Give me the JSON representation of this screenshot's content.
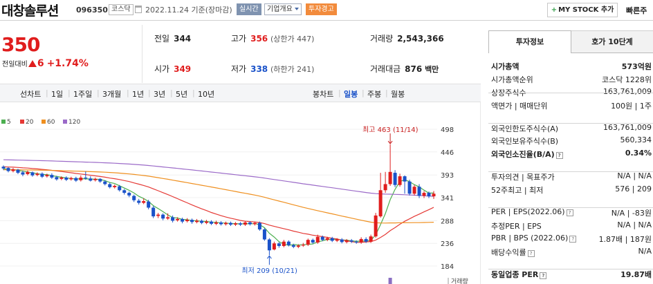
{
  "header": {
    "title": "대창솔루션",
    "code": "096350",
    "market": "코스닥",
    "date": "2022.11.24 기준(장마감)",
    "realtime_label": "실시간",
    "overview_label": "기업개요",
    "warning_label": "투자경고",
    "mystock_label": "MY STOCK 추가",
    "quick_label": "빠른주"
  },
  "price": {
    "current": "350",
    "change_label": "전일대비",
    "change": "6",
    "change_pct": "+1.74%"
  },
  "summary": {
    "prev_label": "전일",
    "prev": "344",
    "high_label": "고가",
    "high": "356",
    "upper_limit": "(상한가 447)",
    "volume_label": "거래량",
    "volume": "2,543,366",
    "open_label": "시가",
    "open": "349",
    "low_label": "저가",
    "low": "338",
    "lower_limit": "(하한가 241)",
    "amount_label": "거래대금",
    "amount": "876",
    "amount_unit": "백만"
  },
  "period_bar": {
    "line_chart_label": "선차트",
    "periods": [
      "1일",
      "1주일",
      "3개월",
      "1년",
      "3년",
      "5년",
      "10년"
    ],
    "candle_chart_label": "봉차트",
    "candles": [
      "일봉",
      "주봉",
      "월봉"
    ],
    "active_candle": "일봉"
  },
  "chart_data": {
    "type": "candlestick",
    "y_ticks": [
      "498",
      "446",
      "393",
      "341",
      "288",
      "236",
      "184"
    ],
    "ylim": [
      184,
      498
    ],
    "legend": [
      {
        "label": "5",
        "color": "#4caf50"
      },
      {
        "label": "20",
        "color": "#e53935"
      },
      {
        "label": "60",
        "color": "#ef8f1e"
      },
      {
        "label": "120",
        "color": "#9b6ac8"
      }
    ],
    "max_annotation": "최고 463 (11/14)",
    "min_annotation": "최저 209 (10/21)",
    "volume_label": "거래량",
    "candles": [
      [
        412,
        408,
        415,
        404
      ],
      [
        409,
        402,
        411,
        399
      ],
      [
        402,
        406,
        409,
        399
      ],
      [
        405,
        398,
        407,
        395
      ],
      [
        399,
        394,
        403,
        390
      ],
      [
        395,
        400,
        403,
        392
      ],
      [
        399,
        392,
        401,
        389
      ],
      [
        393,
        396,
        399,
        390
      ],
      [
        396,
        389,
        399,
        386
      ],
      [
        390,
        393,
        396,
        387
      ],
      [
        393,
        387,
        397,
        384
      ],
      [
        388,
        383,
        391,
        380
      ],
      [
        384,
        387,
        390,
        381
      ],
      [
        387,
        382,
        390,
        379
      ],
      [
        383,
        386,
        389,
        380
      ],
      [
        386,
        380,
        389,
        377
      ],
      [
        381,
        387,
        392,
        378
      ],
      [
        387,
        385,
        401,
        382
      ],
      [
        385,
        380,
        390,
        378
      ],
      [
        381,
        384,
        387,
        378
      ],
      [
        384,
        378,
        386,
        375
      ],
      [
        378,
        372,
        381,
        369
      ],
      [
        372,
        365,
        375,
        362
      ],
      [
        365,
        368,
        371,
        362
      ],
      [
        367,
        358,
        370,
        355
      ],
      [
        358,
        352,
        361,
        348
      ],
      [
        352,
        346,
        355,
        342
      ],
      [
        345,
        335,
        348,
        331
      ],
      [
        334,
        329,
        338,
        325
      ],
      [
        329,
        333,
        339,
        326
      ],
      [
        332,
        318,
        336,
        314
      ],
      [
        318,
        298,
        322,
        294
      ],
      [
        299,
        302,
        306,
        294
      ],
      [
        302,
        293,
        305,
        289
      ],
      [
        293,
        296,
        305,
        290
      ],
      [
        296,
        288,
        300,
        284
      ],
      [
        289,
        292,
        296,
        286
      ],
      [
        292,
        286,
        295,
        282
      ],
      [
        287,
        290,
        294,
        284
      ],
      [
        290,
        285,
        293,
        281
      ],
      [
        285,
        288,
        292,
        282
      ],
      [
        288,
        283,
        291,
        280
      ],
      [
        283,
        286,
        290,
        280
      ],
      [
        286,
        281,
        289,
        278
      ],
      [
        281,
        284,
        288,
        278
      ],
      [
        284,
        280,
        287,
        277
      ],
      [
        280,
        283,
        286,
        277
      ],
      [
        283,
        279,
        286,
        276
      ],
      [
        279,
        282,
        285,
        276
      ],
      [
        282,
        279,
        285,
        276
      ],
      [
        279,
        284,
        287,
        276
      ],
      [
        284,
        280,
        287,
        277
      ],
      [
        280,
        283,
        286,
        277
      ],
      [
        283,
        268,
        286,
        265
      ],
      [
        268,
        245,
        271,
        242
      ],
      [
        245,
        220,
        248,
        209
      ],
      [
        222,
        236,
        240,
        220
      ],
      [
        236,
        230,
        239,
        226
      ],
      [
        230,
        240,
        244,
        227
      ],
      [
        240,
        232,
        243,
        229
      ],
      [
        232,
        228,
        235,
        225
      ],
      [
        228,
        231,
        234,
        225
      ],
      [
        231,
        233,
        237,
        228
      ],
      [
        233,
        244,
        247,
        230
      ],
      [
        244,
        238,
        247,
        235
      ],
      [
        238,
        251,
        256,
        235
      ],
      [
        251,
        244,
        254,
        241
      ],
      [
        244,
        248,
        251,
        241
      ],
      [
        248,
        242,
        251,
        239
      ],
      [
        242,
        245,
        248,
        239
      ],
      [
        245,
        239,
        248,
        236
      ],
      [
        239,
        243,
        246,
        236
      ],
      [
        243,
        240,
        246,
        237
      ],
      [
        240,
        238,
        243,
        235
      ],
      [
        238,
        246,
        250,
        235
      ],
      [
        246,
        240,
        250,
        237
      ],
      [
        240,
        252,
        256,
        237
      ],
      [
        252,
        300,
        306,
        249
      ],
      [
        298,
        358,
        398,
        295
      ],
      [
        358,
        372,
        400,
        352
      ],
      [
        372,
        400,
        463,
        368
      ],
      [
        398,
        370,
        404,
        365
      ],
      [
        370,
        390,
        396,
        366
      ],
      [
        390,
        378,
        392,
        350
      ],
      [
        378,
        350,
        382,
        346
      ],
      [
        350,
        366,
        370,
        346
      ],
      [
        366,
        345,
        372,
        340
      ],
      [
        345,
        352,
        356,
        340
      ],
      [
        352,
        344,
        355,
        340
      ],
      [
        344,
        350,
        356,
        338
      ]
    ]
  },
  "side": {
    "tab_info": "투자정보",
    "tab_hoga": "호가 10단계",
    "rows": [
      {
        "k": "시가총액",
        "v": "573억원"
      },
      {
        "k": "시가총액순위",
        "v": "코스닥 1228위"
      },
      {
        "k": "상장주식수",
        "v": "163,761,009"
      },
      {
        "k": "액면가 | 매매단위",
        "v": "100원 | 1주"
      },
      {
        "k": "외국인한도주식수(A)",
        "v": "163,761,009"
      },
      {
        "k": "외국인보유주식수(B)",
        "v": "560,334"
      },
      {
        "k": "외국인소진율(B/A)",
        "v": "0.34%"
      },
      {
        "k": "투자의견 | 목표주가",
        "v": "N/A | N/A"
      },
      {
        "k": "52주최고 | 최저",
        "v": "576 | 209"
      },
      {
        "k": "PER | EPS(2022.06)",
        "v": "N/A | -83원"
      },
      {
        "k": "추정PER | EPS",
        "v": "N/A | N/A"
      },
      {
        "k": "PBR | BPS (2022.06)",
        "v": "1.87배 | 187원"
      },
      {
        "k": "배당수익률",
        "v": "N/A"
      },
      {
        "k": "동일업종 PER",
        "v": "19.87배"
      }
    ]
  }
}
